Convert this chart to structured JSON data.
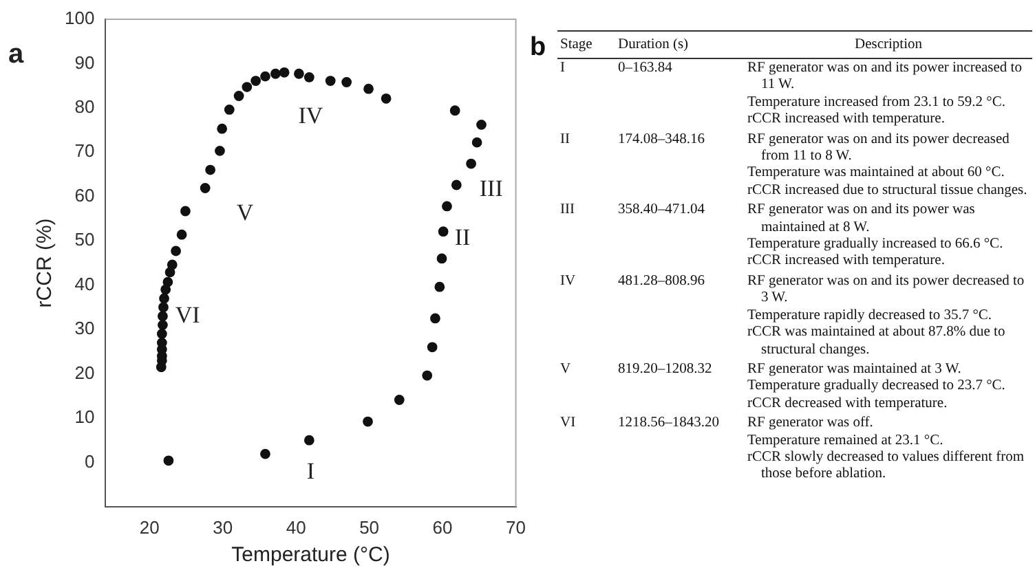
{
  "chart_data": [
    {
      "type": "scatter",
      "title": "a",
      "xlabel": "Temperature (°C)",
      "ylabel": "rCCR (%)",
      "legend": false,
      "grid": false,
      "marker": "circle",
      "xlim": [
        14,
        70
      ],
      "xticks": [
        20,
        30,
        40,
        50,
        60,
        70
      ],
      "ylim": [
        -10,
        100
      ],
      "yticks": [
        0,
        10,
        20,
        30,
        40,
        50,
        60,
        70,
        80,
        90,
        100
      ],
      "series": [
        {
          "color": "#111111",
          "x": [
            22.6,
            35.8,
            41.8,
            49.8,
            54.1,
            57.9,
            58.6,
            59.0,
            59.6,
            59.9,
            60.1,
            60.6,
            61.9,
            63.9,
            64.7,
            65.3,
            61.7,
            52.3,
            49.9,
            46.9,
            44.7,
            41.8,
            40.4,
            38.4,
            37.2,
            35.8,
            34.5,
            33.3,
            32.2,
            30.9,
            29.9,
            29.6,
            28.3,
            27.6,
            24.9,
            24.4,
            23.6,
            23.1,
            22.8,
            22.5,
            22.2,
            22.0,
            21.9,
            21.8,
            21.8,
            21.7,
            21.7,
            21.7,
            21.7,
            21.7,
            21.6
          ],
          "values": [
            0.4,
            1.9,
            5.0,
            9.2,
            14.1,
            19.6,
            26.0,
            32.5,
            39.6,
            46.0,
            52.1,
            57.8,
            62.6,
            67.4,
            72.2,
            76.2,
            79.4,
            82.1,
            84.3,
            85.8,
            86.1,
            86.9,
            87.7,
            88.0,
            87.7,
            87.1,
            86.1,
            84.7,
            82.7,
            79.6,
            75.3,
            70.3,
            66.0,
            61.9,
            56.7,
            51.4,
            47.7,
            44.6,
            42.9,
            40.7,
            39.0,
            37.0,
            35.0,
            33.0,
            31.0,
            29.0,
            27.0,
            25.5,
            24.0,
            23.0,
            21.5
          ]
        }
      ],
      "annotations": [
        "I",
        "II",
        "III",
        "IV",
        "V",
        "VI"
      ]
    },
    {
      "type": "other",
      "title": "b",
      "categories": [
        "Stage",
        "Duration (s)",
        "Description"
      ],
      "annotations": [
        "I",
        "0–163.84",
        "RF generator was on and its power increased to 11 W.\nTemperature increased from 23.1 to 59.2 °C.\nrCCR increased with temperature.",
        "II",
        "174.08–348.16",
        "RF generator was on and its power decreased from 11 to 8 W.\nTemperature was maintained at about 60 °C.\nrCCR increased due to structural tissue changes.",
        "III",
        "358.40–471.04",
        "RF generator was on and its power was maintained at 8 W.\nTemperature gradually increased to 66.6 °C.\nrCCR increased with temperature.",
        "IV",
        "481.28–808.96",
        "RF generator was on and its power decreased to 3 W.\nTemperature rapidly decreased to 35.7 °C.\nrCCR was maintained at about 87.8% due to structural changes.",
        "V",
        "819.20–1208.32",
        "RF generator was maintained at 3 W.\nTemperature gradually decreased to 23.7 °C.\nrCCR decreased with temperature.",
        "VI",
        "1218.56–1843.20",
        "RF generator was off.\nTemperature remained at 23.1 °C.\nrCCR slowly decreased to values different from those before ablation."
      ]
    }
  ]
}
